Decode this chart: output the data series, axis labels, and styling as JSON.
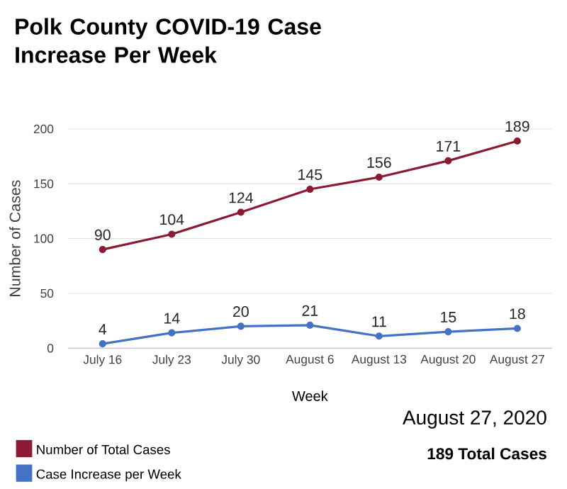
{
  "chart_data": {
    "type": "line",
    "title": "Polk County COVID-19 Case Increase Per Week",
    "xlabel": "Week",
    "ylabel": "Number of Cases",
    "categories": [
      "July 16",
      "July 23",
      "July 30",
      "August 6",
      "August 13",
      "August 20",
      "August 27"
    ],
    "series": [
      {
        "name": "Number of Total Cases",
        "color": "#8b1a32",
        "values": [
          90,
          104,
          124,
          145,
          156,
          171,
          189
        ]
      },
      {
        "name": "Case Increase per Week",
        "color": "#4472c4",
        "values": [
          4,
          14,
          20,
          21,
          11,
          15,
          18
        ]
      }
    ],
    "ylim": [
      0,
      200
    ],
    "yticks": [
      0,
      50,
      100,
      150,
      200
    ],
    "grid": "y",
    "legend": "bottom",
    "marker": "circle",
    "line_style": "solid",
    "data_labels": true,
    "annotations": [
      "August 27, 2020",
      "189 Total Cases"
    ]
  }
}
